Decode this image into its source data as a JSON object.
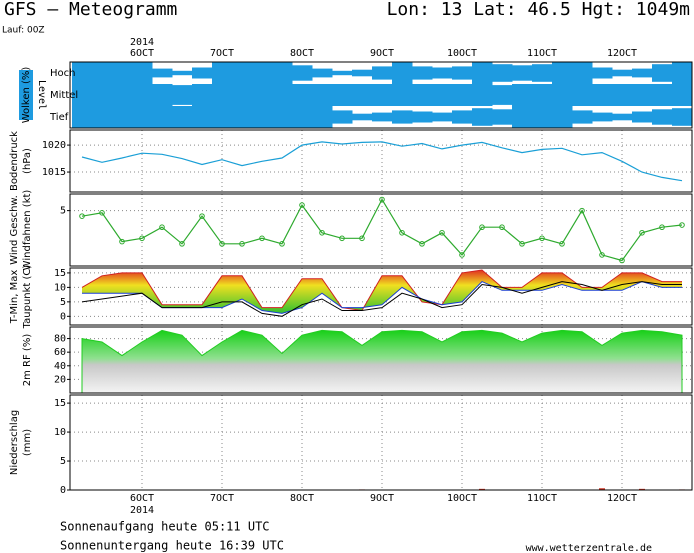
{
  "header": {
    "title": "GFS – Meteogramm",
    "location": "Lon: 13 Lat: 46.5 Hgt: 1049m",
    "run": "Lauf: 00Z"
  },
  "timeline": {
    "xlim": [
      -0.9,
      6.875
    ],
    "year": "2014",
    "xticks": [
      {
        "value": 0,
        "label": "6OCT"
      },
      {
        "value": 1,
        "label": "7OCT"
      },
      {
        "value": 2,
        "label": "8OCT"
      },
      {
        "value": 3,
        "label": "9OCT"
      },
      {
        "value": 4,
        "label": "10OCT"
      },
      {
        "value": 5,
        "label": "11OCT"
      },
      {
        "value": 6,
        "label": "12OCT"
      }
    ],
    "x": [
      -0.75,
      -0.5,
      -0.25,
      0,
      0.25,
      0.5,
      0.75,
      1,
      1.25,
      1.5,
      1.75,
      2,
      2.25,
      2.5,
      2.75,
      3,
      3.25,
      3.5,
      3.75,
      4,
      4.25,
      4.5,
      4.75,
      5,
      5.25,
      5.5,
      5.75,
      6,
      6.25,
      6.5,
      6.75
    ]
  },
  "chart_data": [
    {
      "type": "cloud",
      "ylabel": [
        {
          "text": "Wolken (%)",
          "color": "#ffffff"
        }
      ],
      "level_label": "Level",
      "color": "#1e9be0",
      "series": [
        {
          "name": "Hoch",
          "values": [
            100,
            100,
            100,
            100,
            40,
            20,
            50,
            100,
            100,
            100,
            100,
            70,
            40,
            20,
            30,
            60,
            100,
            60,
            50,
            60,
            100,
            80,
            70,
            80,
            100,
            100,
            50,
            30,
            40,
            80,
            100
          ]
        },
        {
          "name": "Mittel",
          "values": [
            100,
            100,
            100,
            100,
            100,
            90,
            100,
            100,
            100,
            100,
            100,
            100,
            100,
            100,
            100,
            100,
            100,
            100,
            100,
            100,
            100,
            90,
            100,
            100,
            100,
            100,
            100,
            100,
            100,
            100,
            100
          ]
        },
        {
          "name": "Tief",
          "values": [
            100,
            100,
            100,
            100,
            100,
            100,
            100,
            100,
            100,
            100,
            100,
            100,
            100,
            60,
            30,
            40,
            60,
            50,
            40,
            60,
            80,
            70,
            100,
            100,
            100,
            60,
            40,
            30,
            50,
            70,
            80
          ]
        }
      ]
    },
    {
      "type": "line",
      "ylabel": [
        {
          "text": "Bodendruck",
          "color": "#000000"
        },
        {
          "text": "(hPa)",
          "color": "#000000"
        }
      ],
      "ylim": [
        1011.3,
        1022.8
      ],
      "yticks": [
        1015,
        1020
      ],
      "grid": true,
      "markers": false,
      "series": [
        {
          "color": "#1a9fd6",
          "values": [
            1017.8,
            1016.8,
            1017.6,
            1018.5,
            1018.3,
            1017.5,
            1016.4,
            1017.3,
            1016.2,
            1017.0,
            1017.6,
            1020.0,
            1020.6,
            1020.2,
            1020.5,
            1020.6,
            1019.8,
            1020.3,
            1019.3,
            1020.0,
            1020.5,
            1019.5,
            1018.6,
            1019.2,
            1019.4,
            1018.2,
            1018.6,
            1017.0,
            1015.0,
            1014.0,
            1013.4
          ]
        }
      ]
    },
    {
      "type": "line",
      "ylabel": [
        {
          "text": "Wind Geschw.",
          "color": "#22aa22"
        },
        {
          "text": "Windfahnen (kt)",
          "color": "#000000"
        }
      ],
      "ylim": [
        0,
        6.5
      ],
      "yticks": [
        5
      ],
      "grid": true,
      "markers": true,
      "series": [
        {
          "color": "#2eaa2e",
          "values": [
            4.5,
            4.8,
            2.2,
            2.5,
            3.5,
            2.0,
            4.5,
            2.0,
            2.0,
            2.5,
            2.0,
            5.5,
            3.0,
            2.5,
            2.5,
            6.0,
            3.0,
            2.0,
            3.0,
            1.0,
            3.5,
            3.5,
            2.0,
            2.5,
            2.0,
            5.0,
            1.0,
            0.5,
            3.0,
            3.5,
            3.7
          ]
        }
      ]
    },
    {
      "type": "band",
      "ylabel": [
        {
          "text": "T-Min, Max",
          "color": "#1a3fd0"
        },
        {
          "text": "Taupunkt (C)",
          "color": "#000000"
        }
      ],
      "ylim": [
        -3,
        16.7
      ],
      "yticks": [
        0,
        5,
        10,
        15
      ],
      "grid": true,
      "series": [
        {
          "color": "#d02020",
          "values": [
            10,
            14,
            15,
            15,
            4,
            4,
            4,
            14,
            14,
            3,
            3,
            13,
            13,
            3,
            2,
            14,
            14,
            5,
            4,
            15,
            16,
            10,
            10,
            15,
            15,
            10,
            10,
            15,
            15,
            12,
            12
          ]
        },
        {
          "color": "#1a3fd0",
          "values": [
            8,
            8,
            8,
            8,
            3,
            3,
            3,
            3,
            6,
            2,
            1,
            3,
            8,
            3,
            3,
            4,
            10,
            6,
            4,
            5,
            12,
            9,
            9,
            9,
            11,
            9,
            9,
            9,
            12,
            10,
            10
          ]
        },
        {
          "color": "#000000",
          "values": [
            5,
            6,
            7,
            8,
            3,
            3,
            3,
            5,
            5,
            1,
            0,
            4,
            6,
            2,
            2,
            3,
            8,
            6,
            3,
            4,
            11,
            10,
            8,
            10,
            12,
            11,
            9,
            11,
            12,
            11,
            11
          ]
        }
      ]
    },
    {
      "type": "area",
      "ylabel": [
        {
          "text": "2m RF (%)",
          "color": "#22aa22"
        }
      ],
      "ylim": [
        0,
        97
      ],
      "yticks": [
        20,
        40,
        60,
        80
      ],
      "grid": true,
      "series": [
        {
          "color": "#22cc22",
          "values": [
            80,
            75,
            55,
            75,
            92,
            85,
            55,
            75,
            92,
            85,
            58,
            85,
            92,
            90,
            70,
            90,
            92,
            90,
            75,
            90,
            92,
            88,
            75,
            88,
            92,
            90,
            70,
            88,
            92,
            90,
            85
          ]
        }
      ]
    },
    {
      "type": "bar",
      "ylabel": [
        {
          "text": "Niederschlag",
          "color": "#000000"
        },
        {
          "text": "(mm)",
          "color": "#000000"
        }
      ],
      "ylim": [
        0,
        16.4
      ],
      "yticks": [
        0,
        5,
        10,
        15
      ],
      "grid": true,
      "series": [
        {
          "color": "#cc3322",
          "values": [
            0,
            0,
            0,
            0,
            0,
            0,
            0,
            0,
            0,
            0,
            0,
            0,
            0,
            0,
            0.1,
            0,
            0,
            0,
            0,
            0,
            0.2,
            0,
            0,
            0,
            0,
            0,
            0.3,
            0,
            0.2,
            0,
            0.1
          ]
        }
      ]
    }
  ],
  "footer": {
    "sunrise": "Sonnenaufgang heute 05:11 UTC",
    "sunset": "Sonnenuntergang heute 16:39 UTC",
    "source": "www.wetterzentrale.de"
  }
}
